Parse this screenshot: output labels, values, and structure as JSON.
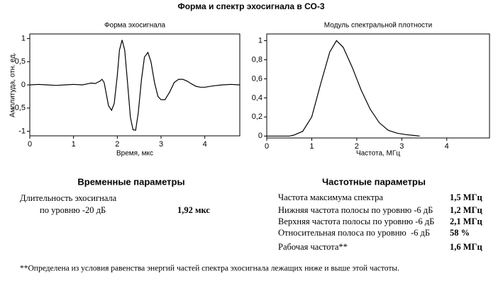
{
  "title": "Форма и спектр эхосигнала в СО-3",
  "chart_data": [
    {
      "type": "line",
      "title": "Форма эхосигнала",
      "x_label": "Время, мкс",
      "y_label": "Амплитуда, отн. ед.",
      "x": [
        0,
        0.2,
        0.4,
        0.6,
        0.8,
        1.0,
        1.2,
        1.3,
        1.4,
        1.5,
        1.6,
        1.65,
        1.7,
        1.75,
        1.8,
        1.87,
        1.93,
        2.0,
        2.05,
        2.11,
        2.17,
        2.23,
        2.3,
        2.36,
        2.42,
        2.48,
        2.55,
        2.62,
        2.7,
        2.77,
        2.85,
        2.93,
        3.0,
        3.09,
        3.2,
        3.3,
        3.4,
        3.5,
        3.6,
        3.7,
        3.8,
        3.9,
        4.0,
        4.2,
        4.4,
        4.6,
        4.8
      ],
      "series": [
        {
          "color": "#000000",
          "values": [
            0,
            0.01,
            0,
            -0.01,
            0,
            0.01,
            0,
            0.02,
            0.04,
            0.03,
            0.08,
            0.12,
            0.05,
            -0.2,
            -0.45,
            -0.55,
            -0.4,
            0.2,
            0.75,
            0.97,
            0.75,
            0.1,
            -0.7,
            -0.97,
            -0.98,
            -0.6,
            0.1,
            0.6,
            0.7,
            0.5,
            0.05,
            -0.25,
            -0.32,
            -0.32,
            -0.15,
            0.05,
            0.12,
            0.12,
            0.08,
            0.02,
            -0.03,
            -0.05,
            -0.05,
            -0.02,
            0,
            0.01,
            0
          ]
        }
      ],
      "xlim": [
        0,
        4.8
      ],
      "ylim": [
        -1.1,
        1.1
      ],
      "xticks": [
        0,
        1,
        2,
        3,
        4
      ],
      "yticks": [
        -1,
        {
          "value": -0.5,
          "label": "-0,5"
        },
        0,
        {
          "value": 0.5,
          "label": "0,5"
        },
        1
      ]
    },
    {
      "type": "line",
      "title": "Модуль спектральной плотности",
      "x_label": "Частота, МГц",
      "x": [
        0,
        0.5,
        0.6,
        0.8,
        1.0,
        1.2,
        1.4,
        1.55,
        1.7,
        1.9,
        2.1,
        2.3,
        2.5,
        2.7,
        2.9,
        3.1,
        3.3,
        3.4
      ],
      "series": [
        {
          "color": "#000000",
          "values": [
            0,
            0,
            0.01,
            0.05,
            0.2,
            0.55,
            0.88,
            1.0,
            0.93,
            0.72,
            0.48,
            0.28,
            0.14,
            0.06,
            0.03,
            0.015,
            0.005,
            0
          ]
        }
      ],
      "xlim": [
        0,
        4.95
      ],
      "ylim": [
        -0.02,
        1.07
      ],
      "xticks": [
        0,
        1,
        2,
        3,
        4
      ],
      "yticks": [
        0,
        {
          "value": 0.2,
          "label": "0,2"
        },
        {
          "value": 0.4,
          "label": "0,4"
        },
        {
          "value": 0.6,
          "label": "0,6"
        },
        {
          "value": 0.8,
          "label": "0,8"
        },
        1
      ]
    }
  ],
  "time_params": {
    "title": "Временные параметры",
    "rows": [
      {
        "label": "Длительность эхосигнала"
      },
      {
        "label": "по уровню -20 дБ",
        "value": "1,92 мкс"
      }
    ]
  },
  "freq_params": {
    "title": "Частотные параметры",
    "rows": [
      {
        "label": "Частота максимума спектра",
        "value": "1,5 МГц"
      },
      {
        "label": "Нижняя частота полосы по уровню -6 дБ",
        "value": "1,2 МГц"
      },
      {
        "label": "Верхняя частота полосы по уровню -6 дБ",
        "value": "2,1 МГц"
      },
      {
        "label": "Относительная полоса по уровню  -6 дБ",
        "value": "58 %"
      },
      {
        "label": "Рабочая частота**",
        "value": "1,6 МГц"
      }
    ]
  },
  "footnote": "**Определена из условия равенства энергий частей спектра эхосигнала лежащих ниже и выше этой частоты."
}
